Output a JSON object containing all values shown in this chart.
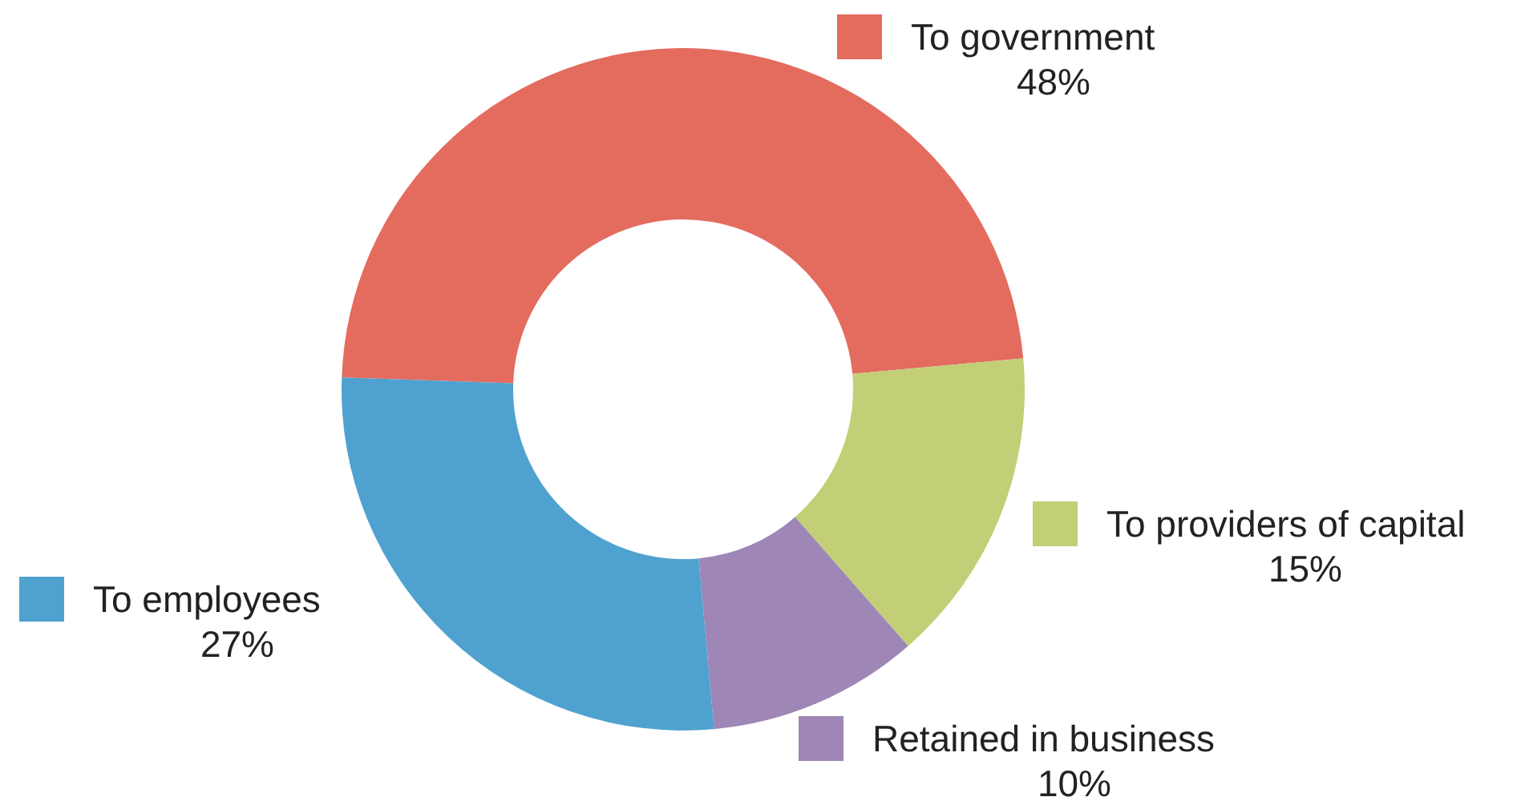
{
  "chart_data": {
    "type": "donut",
    "categories": [
      "To government",
      "To providers of capital",
      "Retained in business",
      "To employees"
    ],
    "values": [
      48,
      15,
      10,
      27
    ],
    "colors": [
      "#e36c5f",
      "#c2cf77",
      "#9e86b6",
      "#4fa2cf"
    ],
    "value_labels": [
      "48%",
      "15%",
      "10%",
      "27%"
    ],
    "legend": "right"
  }
}
